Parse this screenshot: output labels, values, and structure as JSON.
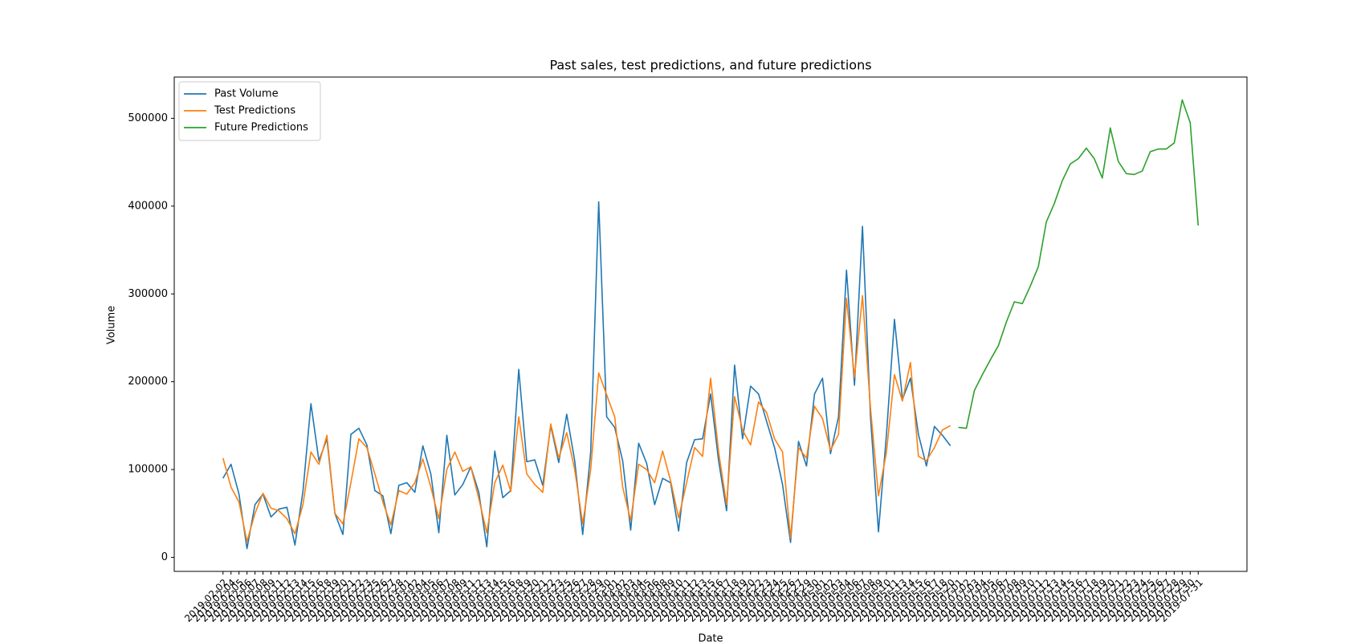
{
  "chart_data": {
    "type": "line",
    "title": "Past sales, test predictions, and future predictions",
    "xlabel": "Date",
    "ylabel": "Volume",
    "categories": [
      "2019-02-02",
      "2019-02-04",
      "2019-02-05",
      "2019-02-06",
      "2019-02-07",
      "2019-02-08",
      "2019-02-09",
      "2019-02-11",
      "2019-02-12",
      "2019-02-13",
      "2019-02-14",
      "2019-02-15",
      "2019-02-16",
      "2019-02-18",
      "2019-02-19",
      "2019-02-20",
      "2019-02-21",
      "2019-02-22",
      "2019-02-23",
      "2019-02-25",
      "2019-02-26",
      "2019-02-27",
      "2019-02-28",
      "2019-03-01",
      "2019-03-02",
      "2019-03-04",
      "2019-03-05",
      "2019-03-06",
      "2019-03-07",
      "2019-03-08",
      "2019-03-09",
      "2019-03-11",
      "2019-03-12",
      "2019-03-13",
      "2019-03-14",
      "2019-03-15",
      "2019-03-16",
      "2019-03-18",
      "2019-03-19",
      "2019-03-20",
      "2019-03-21",
      "2019-03-22",
      "2019-03-23",
      "2019-03-25",
      "2019-03-26",
      "2019-03-27",
      "2019-03-28",
      "2019-03-29",
      "2019-03-30",
      "2019-04-01",
      "2019-04-02",
      "2019-04-03",
      "2019-04-04",
      "2019-04-05",
      "2019-04-06",
      "2019-04-08",
      "2019-04-09",
      "2019-04-10",
      "2019-04-11",
      "2019-04-12",
      "2019-04-13",
      "2019-04-15",
      "2019-04-16",
      "2019-04-17",
      "2019-04-18",
      "2019-04-19",
      "2019-04-20",
      "2019-04-22",
      "2019-04-23",
      "2019-04-24",
      "2019-04-25",
      "2019-04-26",
      "2019-04-27",
      "2019-04-29",
      "2019-04-30",
      "2019-05-01",
      "2019-05-02",
      "2019-05-03",
      "2019-05-04",
      "2019-05-06",
      "2019-05-07",
      "2019-05-08",
      "2019-05-09",
      "2019-05-10",
      "2019-05-11",
      "2019-05-13",
      "2019-05-14",
      "2019-05-15",
      "2019-05-16",
      "2019-05-17",
      "2019-05-18",
      "2019-05-20",
      "2019-07-01",
      "2019-07-02",
      "2019-07-03",
      "2019-07-04",
      "2019-07-05",
      "2019-07-06",
      "2019-07-07",
      "2019-07-08",
      "2019-07-09",
      "2019-07-10",
      "2019-07-11",
      "2019-07-12",
      "2019-07-13",
      "2019-07-14",
      "2019-07-15",
      "2019-07-16",
      "2019-07-17",
      "2019-07-18",
      "2019-07-19",
      "2019-07-20",
      "2019-07-21",
      "2019-07-22",
      "2019-07-23",
      "2019-07-24",
      "2019-07-25",
      "2019-07-26",
      "2019-07-27",
      "2019-07-28",
      "2019-07-29",
      "2019-07-30",
      "2019-07-31"
    ],
    "series": [
      {
        "name": "Past Volume",
        "color": "#1f77b4",
        "values": [
          90000,
          106000,
          72000,
          10000,
          60000,
          72000,
          46000,
          55000,
          57000,
          14000,
          75000,
          175000,
          110000,
          135000,
          50000,
          26000,
          140000,
          147000,
          128000,
          76000,
          70000,
          27000,
          82000,
          85000,
          74000,
          127000,
          95000,
          28000,
          139000,
          71000,
          83000,
          103000,
          74000,
          12000,
          121000,
          68000,
          76000,
          214000,
          109000,
          111000,
          82000,
          150000,
          108000,
          163000,
          110000,
          26000,
          120000,
          405000,
          160000,
          148000,
          110000,
          31000,
          130000,
          107000,
          60000,
          90000,
          85000,
          30000,
          108000,
          134000,
          135000,
          186000,
          110000,
          53000,
          219000,
          135000,
          195000,
          186000,
          155000,
          125000,
          83000,
          17000,
          132000,
          104000,
          186000,
          204000,
          118000,
          160000,
          327000,
          196000,
          377000,
          160000,
          29000,
          140000,
          271000,
          180000,
          204000,
          140000,
          104000,
          149000,
          139000,
          127000,
          null,
          null,
          null,
          null,
          null,
          null,
          null,
          null,
          null,
          null,
          null,
          null,
          null,
          null,
          null,
          null,
          null,
          null,
          null,
          null,
          null,
          null,
          null,
          null,
          null,
          null,
          null,
          null,
          null,
          null,
          null
        ]
      },
      {
        "name": "Test Predictions",
        "color": "#ff7f0e",
        "values": [
          113000,
          80000,
          63000,
          18000,
          50000,
          73000,
          56000,
          53000,
          44000,
          27000,
          60000,
          120000,
          106000,
          139000,
          50000,
          38000,
          85000,
          135000,
          125000,
          95000,
          63000,
          37000,
          76000,
          72000,
          85000,
          112000,
          80000,
          44000,
          100000,
          120000,
          98000,
          103000,
          67000,
          28000,
          85000,
          105000,
          75000,
          160000,
          95000,
          83000,
          74000,
          152000,
          113000,
          142000,
          100000,
          38000,
          100000,
          210000,
          185000,
          160000,
          80000,
          42000,
          106000,
          100000,
          85000,
          121000,
          87000,
          45000,
          85000,
          125000,
          115000,
          204000,
          120000,
          60000,
          183000,
          145000,
          128000,
          177000,
          165000,
          135000,
          120000,
          22000,
          125000,
          113000,
          172000,
          158000,
          122000,
          140000,
          295000,
          205000,
          298000,
          170000,
          70000,
          120000,
          208000,
          178000,
          222000,
          115000,
          110000,
          125000,
          145000,
          150000,
          null,
          null,
          null,
          null,
          null,
          null,
          null,
          null,
          null,
          null,
          null,
          null,
          null,
          null,
          null,
          null,
          null,
          null,
          null,
          null,
          null,
          null,
          null,
          null,
          null,
          null,
          null,
          null,
          null,
          null,
          null
        ]
      },
      {
        "name": "Future Predictions",
        "color": "#2ca02c",
        "values": [
          null,
          null,
          null,
          null,
          null,
          null,
          null,
          null,
          null,
          null,
          null,
          null,
          null,
          null,
          null,
          null,
          null,
          null,
          null,
          null,
          null,
          null,
          null,
          null,
          null,
          null,
          null,
          null,
          null,
          null,
          null,
          null,
          null,
          null,
          null,
          null,
          null,
          null,
          null,
          null,
          null,
          null,
          null,
          null,
          null,
          null,
          null,
          null,
          null,
          null,
          null,
          null,
          null,
          null,
          null,
          null,
          null,
          null,
          null,
          null,
          null,
          null,
          null,
          null,
          null,
          null,
          null,
          null,
          null,
          null,
          null,
          null,
          null,
          null,
          null,
          null,
          null,
          null,
          null,
          null,
          null,
          null,
          null,
          null,
          null,
          null,
          null,
          null,
          null,
          null,
          null,
          null,
          148000,
          147000,
          190000,
          208000,
          225000,
          241000,
          268000,
          291000,
          289000,
          309000,
          331000,
          382000,
          403000,
          429000,
          448000,
          454000,
          466000,
          454000,
          432000,
          489000,
          451000,
          437000,
          436000,
          440000,
          462000,
          465000,
          465000,
          472000,
          521000,
          495000,
          378000
        ]
      }
    ],
    "ylim": [
      -16000,
      547000
    ],
    "yticks": [
      0,
      100000,
      200000,
      300000,
      400000,
      500000
    ],
    "legend": "upper left"
  }
}
